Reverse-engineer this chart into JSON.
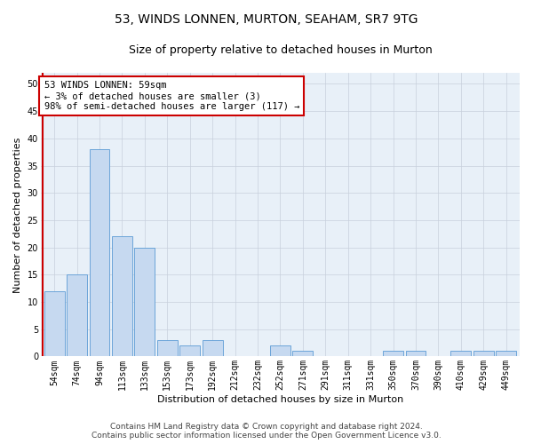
{
  "title": "53, WINDS LONNEN, MURTON, SEAHAM, SR7 9TG",
  "subtitle": "Size of property relative to detached houses in Murton",
  "xlabel": "Distribution of detached houses by size in Murton",
  "ylabel": "Number of detached properties",
  "categories": [
    "54sqm",
    "74sqm",
    "94sqm",
    "113sqm",
    "133sqm",
    "153sqm",
    "173sqm",
    "192sqm",
    "212sqm",
    "232sqm",
    "252sqm",
    "271sqm",
    "291sqm",
    "311sqm",
    "331sqm",
    "350sqm",
    "370sqm",
    "390sqm",
    "410sqm",
    "429sqm",
    "449sqm"
  ],
  "values": [
    12,
    15,
    38,
    22,
    20,
    3,
    2,
    3,
    0,
    0,
    2,
    1,
    0,
    0,
    0,
    1,
    1,
    0,
    1,
    1,
    1
  ],
  "bar_color": "#c6d9f0",
  "bar_edge_color": "#5b9bd5",
  "annotation_text": "53 WINDS LONNEN: 59sqm\n← 3% of detached houses are smaller (3)\n98% of semi-detached houses are larger (117) →",
  "annotation_box_color": "#ffffff",
  "annotation_box_edge_color": "#cc0000",
  "vline_color": "#cc0000",
  "vline_x": -0.5,
  "ylim": [
    0,
    52
  ],
  "yticks": [
    0,
    5,
    10,
    15,
    20,
    25,
    30,
    35,
    40,
    45,
    50
  ],
  "footer_line1": "Contains HM Land Registry data © Crown copyright and database right 2024.",
  "footer_line2": "Contains public sector information licensed under the Open Government Licence v3.0.",
  "background_color": "#ffffff",
  "plot_bg_color": "#e8f0f8",
  "grid_color": "#c8d0dc",
  "title_fontsize": 10,
  "subtitle_fontsize": 9,
  "axis_label_fontsize": 8,
  "tick_fontsize": 7,
  "annotation_fontsize": 7.5,
  "footer_fontsize": 6.5
}
